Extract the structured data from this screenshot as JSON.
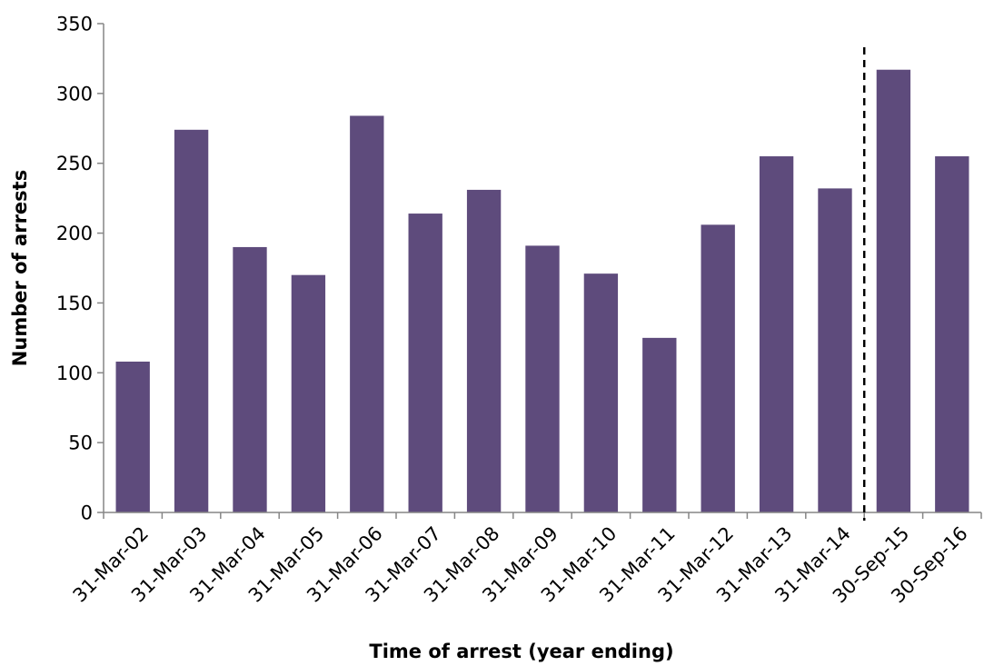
{
  "chart_data": {
    "type": "bar",
    "xlabel": "Time of arrest (year ending)",
    "ylabel": "Number of arrests",
    "categories": [
      "31-Mar-02",
      "31-Mar-03",
      "31-Mar-04",
      "31-Mar-05",
      "31-Mar-06",
      "31-Mar-07",
      "31-Mar-08",
      "31-Mar-09",
      "31-Mar-10",
      "31-Mar-11",
      "31-Mar-12",
      "31-Mar-13",
      "31-Mar-14",
      "30-Sep-15",
      "30-Sep-16"
    ],
    "values": [
      108,
      274,
      190,
      170,
      284,
      214,
      231,
      191,
      171,
      125,
      206,
      255,
      232,
      317,
      255
    ],
    "ylim": [
      0,
      350
    ],
    "yticks": [
      0,
      50,
      100,
      150,
      200,
      250,
      300,
      350
    ],
    "grid": false,
    "legend": "none",
    "bar_color": "#5e4b7c",
    "annotations": [
      {
        "type": "dashed-vertical-line",
        "between": [
          "31-Mar-14",
          "30-Sep-15"
        ]
      }
    ]
  }
}
